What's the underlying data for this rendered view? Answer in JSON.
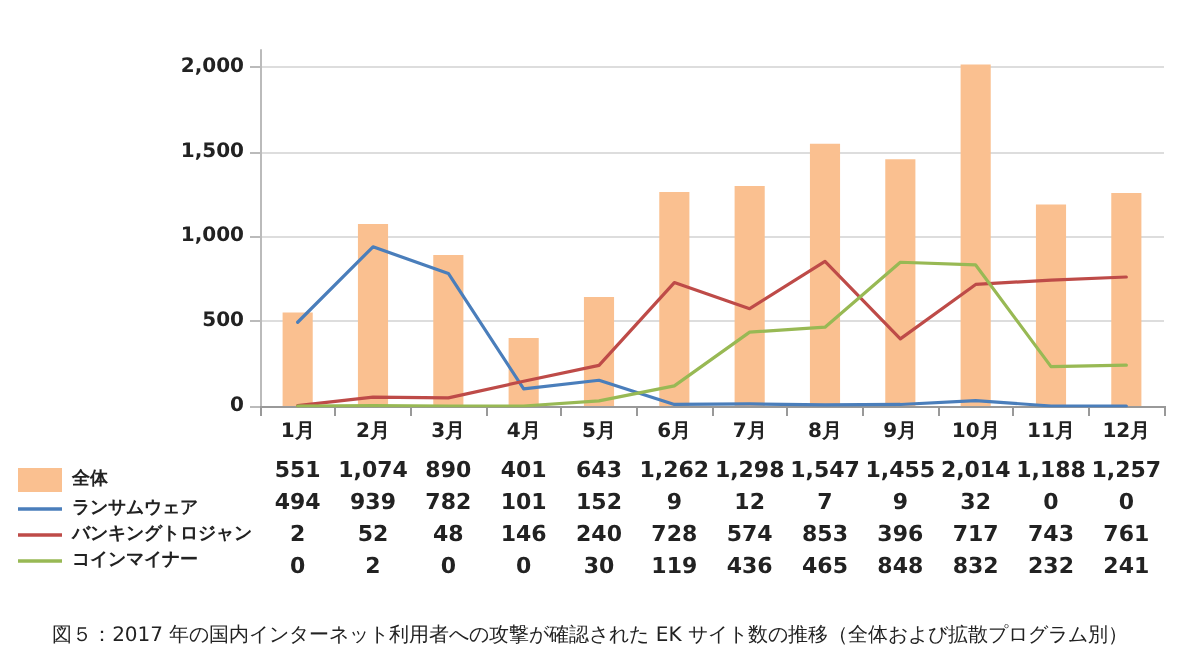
{
  "chart_data": {
    "type": "bar",
    "categories": [
      "1月",
      "2月",
      "3月",
      "4月",
      "5月",
      "6月",
      "7月",
      "8月",
      "9月",
      "10月",
      "11月",
      "12月"
    ],
    "series": [
      {
        "name": "全体",
        "color": "#fac090",
        "values": [
          551,
          1074,
          890,
          401,
          643,
          1262,
          1298,
          1547,
          1455,
          2014,
          1188,
          1257
        ],
        "value_labels": [
          "551",
          "1,074",
          "890",
          "401",
          "643",
          "1,262",
          "1,298",
          "1,547",
          "1,455",
          "2,014",
          "1,188",
          "1,257"
        ]
      },
      {
        "name": "ランサムウェア",
        "type": "line",
        "color": "#4a7ebb",
        "values": [
          494,
          939,
          782,
          101,
          152,
          9,
          12,
          7,
          9,
          32,
          0,
          0
        ]
      },
      {
        "name": "バンキングトロジャン",
        "type": "line",
        "color": "#be4b48",
        "values": [
          2,
          52,
          48,
          146,
          240,
          728,
          574,
          853,
          396,
          717,
          743,
          761
        ]
      },
      {
        "name": "コインマイナー",
        "type": "line",
        "color": "#98b954",
        "values": [
          0,
          2,
          0,
          0,
          30,
          119,
          436,
          465,
          848,
          832,
          232,
          241
        ]
      }
    ],
    "ylim": [
      0,
      2100
    ],
    "yticks": [
      0,
      500,
      {
        "value": 1000,
        "label": "1,000"
      },
      {
        "value": 1500,
        "label": "1,500"
      },
      {
        "value": 2000,
        "label": "2,000"
      }
    ],
    "grid": "y",
    "legend": "bottom left",
    "marker": "none",
    "line_style": "solid",
    "data_labels": true,
    "annotations": [
      "図５：2017 年の国内インターネット利用者への攻撃が確認された EK サイト数の推移（全体および拡散プログラム別）"
    ]
  }
}
